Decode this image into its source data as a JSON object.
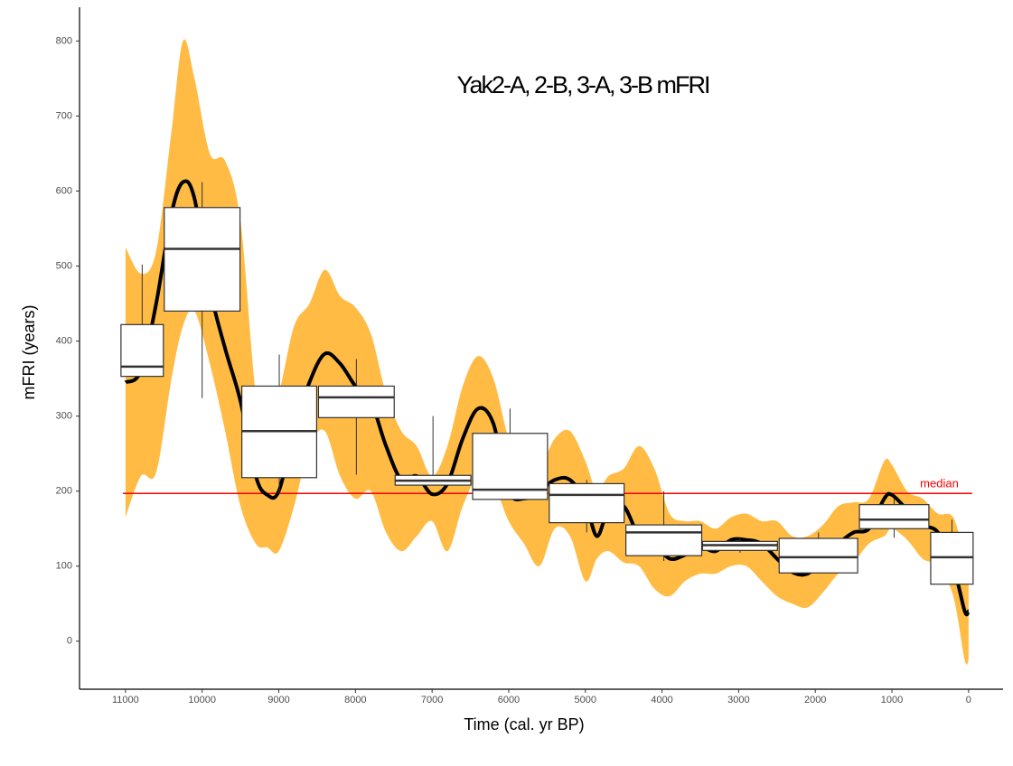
{
  "chart_data": {
    "type": "line",
    "title": "Yak2-A, 2-B, 3-A, 3-B mFRI",
    "x_label": "Time (cal. yr BP)",
    "y_label": "mFRI (years)",
    "xlim": [
      11600,
      -450
    ],
    "ylim": [
      -64,
      845
    ],
    "xticks": [
      11000,
      10000,
      9000,
      8000,
      7000,
      6000,
      5000,
      4000,
      3000,
      2000,
      1000,
      0
    ],
    "yticks": [
      0,
      100,
      200,
      300,
      400,
      500,
      600,
      700,
      800
    ],
    "x": [
      11000,
      10800,
      10600,
      10400,
      10250,
      10100,
      9900,
      9700,
      9500,
      9300,
      9150,
      9000,
      8800,
      8600,
      8400,
      8200,
      8000,
      7800,
      7600,
      7400,
      7200,
      7000,
      6800,
      6600,
      6400,
      6200,
      6000,
      5800,
      5600,
      5400,
      5200,
      5000,
      4850,
      4700,
      4500,
      4300,
      4100,
      3900,
      3700,
      3500,
      3300,
      3100,
      2900,
      2700,
      2500,
      2300,
      2100,
      1900,
      1700,
      1500,
      1300,
      1100,
      1000,
      800,
      600,
      400,
      200,
      50,
      0
    ],
    "line": {
      "color": "#000000",
      "values": [
        345,
        360,
        450,
        570,
        612,
        590,
        470,
        390,
        320,
        220,
        195,
        200,
        280,
        345,
        383,
        370,
        340,
        320,
        260,
        215,
        220,
        196,
        210,
        270,
        310,
        290,
        200,
        190,
        200,
        215,
        215,
        185,
        140,
        175,
        180,
        140,
        130,
        110,
        115,
        125,
        120,
        135,
        135,
        130,
        110,
        92,
        90,
        110,
        130,
        145,
        150,
        190,
        195,
        175,
        155,
        145,
        100,
        40,
        40
      ]
    },
    "band": {
      "color": "#ffbb44",
      "upper": [
        525,
        490,
        520,
        680,
        800,
        750,
        650,
        640,
        560,
        330,
        300,
        330,
        420,
        450,
        495,
        460,
        445,
        410,
        330,
        280,
        260,
        220,
        260,
        340,
        380,
        350,
        270,
        230,
        230,
        270,
        280,
        240,
        200,
        220,
        230,
        260,
        230,
        170,
        160,
        160,
        150,
        165,
        170,
        160,
        160,
        140,
        140,
        155,
        180,
        185,
        190,
        240,
        235,
        200,
        190,
        170,
        165,
        110,
        100
      ],
      "lower": [
        165,
        220,
        225,
        350,
        420,
        440,
        370,
        280,
        180,
        130,
        125,
        120,
        180,
        260,
        280,
        220,
        190,
        200,
        145,
        120,
        140,
        160,
        120,
        180,
        220,
        210,
        160,
        130,
        100,
        150,
        140,
        80,
        110,
        120,
        105,
        100,
        70,
        60,
        80,
        90,
        90,
        100,
        100,
        80,
        60,
        50,
        45,
        65,
        90,
        105,
        130,
        140,
        150,
        135,
        110,
        100,
        60,
        -25,
        -25
      ]
    },
    "boxes": [
      {
        "xmin": 11059,
        "xmax": 10506,
        "low": 353,
        "q1": 353,
        "median": 366,
        "q3": 422,
        "high": 502
      },
      {
        "xmin": 10494,
        "xmax": 9506,
        "low": 324,
        "q1": 440,
        "median": 523,
        "q3": 578,
        "high": 612
      },
      {
        "xmin": 9482,
        "xmax": 8506,
        "low": 196,
        "q1": 218,
        "median": 280,
        "q3": 340,
        "high": 382
      },
      {
        "xmin": 8482,
        "xmax": 7494,
        "low": 222,
        "q1": 298,
        "median": 325,
        "q3": 340,
        "high": 376
      },
      {
        "xmin": 7482,
        "xmax": 6494,
        "low": 208,
        "q1": 208,
        "median": 214,
        "q3": 221,
        "high": 300
      },
      {
        "xmin": 6471,
        "xmax": 5494,
        "low": 189,
        "q1": 189,
        "median": 202,
        "q3": 277,
        "high": 310
      },
      {
        "xmin": 5471,
        "xmax": 4494,
        "low": 145,
        "q1": 158,
        "median": 195,
        "q3": 210,
        "high": 215
      },
      {
        "xmin": 4471,
        "xmax": 3482,
        "low": 107,
        "q1": 114,
        "median": 145,
        "q3": 155,
        "high": 200
      },
      {
        "xmin": 3471,
        "xmax": 2494,
        "low": 118,
        "q1": 121,
        "median": 128,
        "q3": 133,
        "high": 137
      },
      {
        "xmin": 2471,
        "xmax": 1447,
        "low": 91,
        "q1": 91,
        "median": 112,
        "q3": 137,
        "high": 145
      },
      {
        "xmin": 1424,
        "xmax": 518,
        "low": 138,
        "q1": 150,
        "median": 162,
        "q3": 182,
        "high": 190
      },
      {
        "xmin": 494,
        "xmax": -59,
        "low": 76,
        "q1": 76,
        "median": 112,
        "q3": 145,
        "high": 162
      }
    ],
    "reference_line": {
      "value": 197,
      "label": "median",
      "color": "#ff0000",
      "x_range": [
        11035,
        -47
      ]
    }
  }
}
